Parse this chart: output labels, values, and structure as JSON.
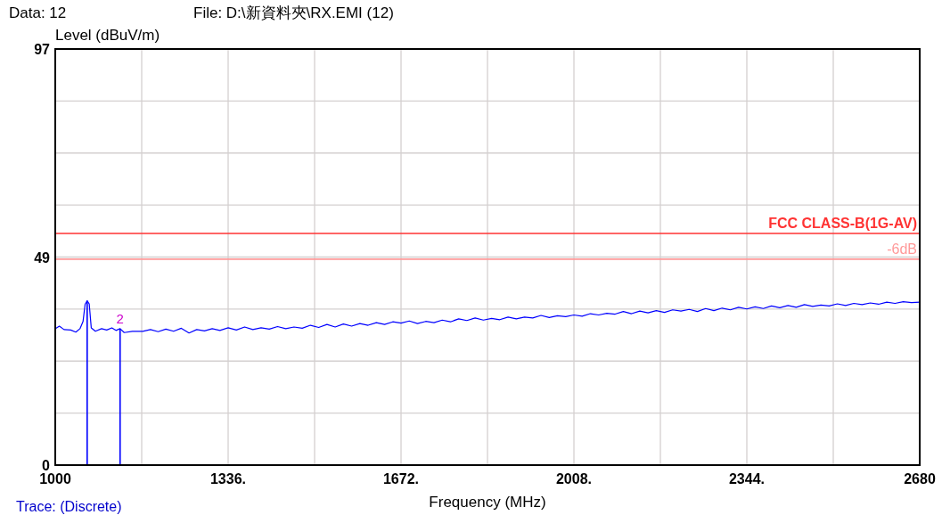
{
  "chart_data": {
    "type": "line",
    "xlabel": "Frequency (MHz)",
    "ylabel": "Level (dBuV/m)",
    "xlim": [
      1000,
      2680
    ],
    "ylim": [
      0,
      97
    ],
    "xticks": [
      1000,
      {
        "value": 1168,
        "label": null
      },
      {
        "value": 1336,
        "label": "1336."
      },
      {
        "value": 1504,
        "label": null
      },
      {
        "value": 1672,
        "label": "1672."
      },
      {
        "value": 1840,
        "label": null
      },
      {
        "value": 2008,
        "label": "2008."
      },
      {
        "value": 2176,
        "label": null
      },
      {
        "value": 2344,
        "label": "2344."
      },
      {
        "value": 2512,
        "label": null
      },
      2680
    ],
    "yticks": [
      0,
      {
        "value": 12.125,
        "label": null
      },
      {
        "value": 24.25,
        "label": null
      },
      {
        "value": 36.375,
        "label": null
      },
      {
        "value": 48.5,
        "label": "49"
      },
      {
        "value": 60.625,
        "label": null
      },
      {
        "value": 72.75,
        "label": null
      },
      {
        "value": 84.875,
        "label": null
      },
      97
    ],
    "grid": true,
    "line_style": "solid",
    "marker": "none",
    "series": [
      {
        "color": "#0000ff",
        "x": [
          1000,
          1008,
          1017,
          1030,
          1040,
          1048,
          1054,
          1058,
          1062,
          1066,
          1070,
          1078,
          1090,
          1100,
          1110,
          1118,
          1126,
          1134,
          1150,
          1170,
          1185,
          1200,
          1215,
          1230,
          1245,
          1260,
          1275,
          1290,
          1305,
          1320,
          1336,
          1352,
          1368,
          1384,
          1400,
          1416,
          1432,
          1448,
          1464,
          1480,
          1496,
          1512,
          1528,
          1544,
          1560,
          1576,
          1592,
          1608,
          1624,
          1640,
          1656,
          1672,
          1688,
          1704,
          1720,
          1736,
          1752,
          1768,
          1784,
          1800,
          1816,
          1832,
          1848,
          1864,
          1880,
          1896,
          1912,
          1928,
          1944,
          1960,
          1976,
          1992,
          2008,
          2024,
          2040,
          2056,
          2072,
          2088,
          2104,
          2120,
          2136,
          2152,
          2168,
          2184,
          2200,
          2216,
          2232,
          2248,
          2264,
          2280,
          2296,
          2312,
          2328,
          2344,
          2360,
          2376,
          2392,
          2408,
          2424,
          2440,
          2456,
          2472,
          2488,
          2504,
          2520,
          2536,
          2552,
          2568,
          2584,
          2600,
          2616,
          2632,
          2648,
          2664,
          2680
        ],
        "values": [
          31.8,
          32.4,
          31.6,
          31.5,
          31.0,
          31.8,
          33.5,
          37.5,
          38.3,
          37.6,
          32.0,
          31.2,
          31.8,
          31.5,
          32.0,
          31.4,
          31.8,
          30.9,
          31.2,
          31.2,
          31.6,
          31.1,
          31.7,
          31.2,
          31.9,
          30.8,
          31.6,
          31.3,
          31.8,
          31.4,
          32.0,
          31.5,
          32.2,
          31.6,
          32.0,
          31.7,
          32.3,
          31.8,
          32.2,
          31.9,
          32.6,
          32.1,
          32.8,
          32.2,
          32.9,
          32.4,
          33.0,
          32.6,
          33.2,
          32.8,
          33.4,
          33.1,
          33.6,
          33.0,
          33.5,
          33.2,
          33.8,
          33.4,
          34.1,
          33.7,
          34.3,
          33.8,
          34.2,
          33.9,
          34.5,
          34.1,
          34.5,
          34.3,
          34.9,
          34.4,
          34.8,
          34.6,
          35.0,
          34.7,
          35.3,
          35.0,
          35.4,
          35.2,
          35.8,
          35.3,
          35.9,
          35.5,
          36.0,
          35.6,
          36.2,
          35.9,
          36.3,
          35.8,
          36.5,
          36.0,
          36.6,
          36.2,
          36.8,
          36.4,
          36.9,
          36.5,
          37.1,
          36.7,
          37.2,
          36.8,
          37.4,
          37.0,
          37.3,
          37.1,
          37.6,
          37.2,
          37.7,
          37.4,
          37.8,
          37.5,
          38.0,
          37.7,
          38.1,
          37.9,
          38.0
        ]
      },
      {
        "type": "bar",
        "color": "#0000ff",
        "x": [
          1062,
          1126
        ],
        "values": [
          38.3,
          31.8
        ]
      }
    ],
    "ref_lines": [
      {
        "axis": "y",
        "value": 54,
        "label": "FCC CLASS-B(1G-AV)",
        "color": "#ff3333"
      },
      {
        "axis": "y",
        "value": 48,
        "label": "-6dB",
        "color": "#ff9999"
      }
    ],
    "annotations": [
      "Data: 12",
      "File: D:\\新資料夾\\RX.EMI  (12)",
      "Trace: (Discrete)",
      {
        "text": "2",
        "x": 1126,
        "y": 31.8
      }
    ]
  }
}
